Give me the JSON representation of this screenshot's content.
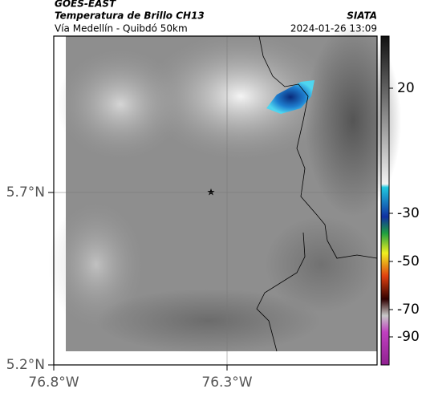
{
  "header": {
    "title": "GOES-EAST",
    "subtitle": "Temperatura de Brillo CH13",
    "route": "Vía Medellín - Quibdó 50km",
    "source": "SIATA",
    "datetime": "2024-01-26 13:09"
  },
  "map": {
    "lat_labels": [
      "5.7°N",
      "5.2°N"
    ],
    "lon_labels": [
      "76.8°W",
      "76.3°W"
    ]
  },
  "colorbar": {
    "ticks": [
      "20",
      "-30",
      "-50",
      "-70",
      "-90"
    ]
  }
}
